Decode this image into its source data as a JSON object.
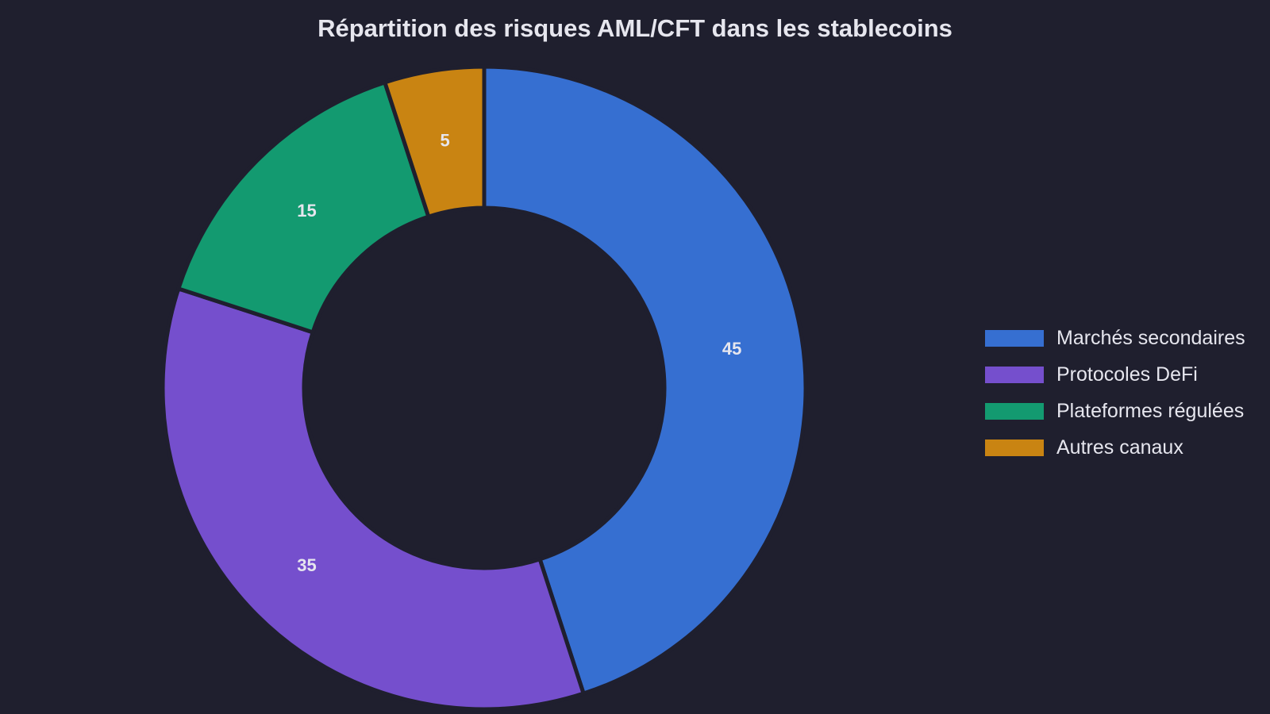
{
  "chart_data": {
    "type": "pie",
    "variant": "donut",
    "title": "Répartition des risques AML/CFT dans les stablecoins",
    "categories": [
      "Marchés secondaires",
      "Protocoles DeFi",
      "Plateformes régulées",
      "Autres canaux"
    ],
    "values": [
      45,
      35,
      15,
      5
    ],
    "colors": [
      "#366fd1",
      "#754fcd",
      "#139a70",
      "#c98412"
    ],
    "data_labels": [
      "45",
      "35",
      "15",
      "5"
    ],
    "start": "top",
    "direction": "clockwise",
    "legend_position": "right",
    "background_color": "#1f1f2e",
    "text_color": "#e6e6ee"
  }
}
